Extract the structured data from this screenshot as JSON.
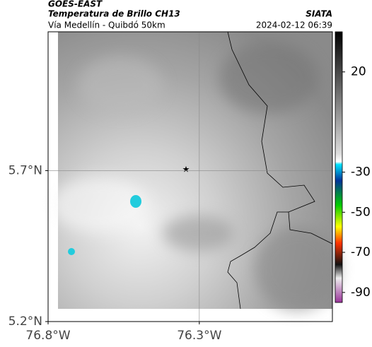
{
  "chart_data": {
    "type": "map",
    "title": "GOES-EAST",
    "subtitle": "Temperatura de Brillo CH13",
    "source": "SIATA",
    "location": "Vía Medellín - Quibdó 50km",
    "datetime": "2024-02-12 06:39",
    "xlim": [
      -76.8,
      -75.86
    ],
    "ylim": [
      5.2,
      6.16
    ],
    "xticks": [
      {
        "value": -76.8,
        "label": "76.8°W"
      },
      {
        "value": -76.3,
        "label": "76.3°W"
      }
    ],
    "yticks": [
      {
        "value": 5.2,
        "label": "5.2°N"
      },
      {
        "value": 5.7,
        "label": "5.7°N"
      }
    ],
    "grid": true,
    "colorbar": {
      "lim": [
        -95,
        40
      ],
      "ticks": [
        20,
        -30,
        -50,
        -70,
        -90
      ]
    }
  }
}
